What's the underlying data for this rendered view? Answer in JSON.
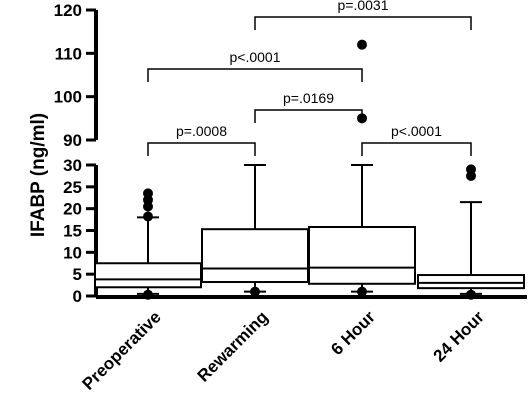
{
  "chart_data": {
    "type": "box",
    "ylabel": "IFABP (ng/ml)",
    "y_axis_segments": [
      {
        "range": [
          0,
          30
        ],
        "ticks": [
          0,
          5,
          10,
          15,
          20,
          25,
          30
        ]
      },
      {
        "range": [
          90,
          120
        ],
        "ticks": [
          90,
          100,
          110,
          120
        ]
      }
    ],
    "categories": [
      "Preoperative",
      "Rewarming",
      "6 Hour",
      "24 Hour"
    ],
    "boxes": [
      {
        "category": "Preoperative",
        "whisker_low": 0.5,
        "q1": 2.0,
        "median": 3.8,
        "q3": 7.5,
        "whisker_high": 18.0,
        "outliers": [
          0.3,
          18.2,
          20.5,
          22.0,
          23.5
        ]
      },
      {
        "category": "Rewarming",
        "whisker_low": 1.0,
        "q1": 3.2,
        "median": 6.3,
        "q3": 15.3,
        "whisker_high": 30.0,
        "outliers": [
          1.0
        ]
      },
      {
        "category": "6 Hour",
        "whisker_low": 1.0,
        "q1": 2.8,
        "median": 6.5,
        "q3": 15.8,
        "whisker_high": 30.0,
        "outliers": [
          1.0,
          95,
          112
        ]
      },
      {
        "category": "24 Hour",
        "whisker_low": 0.5,
        "q1": 1.8,
        "median": 3.0,
        "q3": 4.8,
        "whisker_high": 21.5,
        "outliers": [
          0.3,
          27.5,
          29.0
        ]
      }
    ],
    "comparisons": [
      {
        "from": "Preoperative",
        "to": "Rewarming",
        "label": "p=.0008"
      },
      {
        "from": "Preoperative",
        "to": "6 Hour",
        "label": "p<.0001"
      },
      {
        "from": "Rewarming",
        "to": "6 Hour",
        "label": "p=.0169"
      },
      {
        "from": "Rewarming",
        "to": "24 Hour",
        "label": "p=.0031"
      },
      {
        "from": "6 Hour",
        "to": "24 Hour",
        "label": "p<.0001"
      }
    ]
  }
}
